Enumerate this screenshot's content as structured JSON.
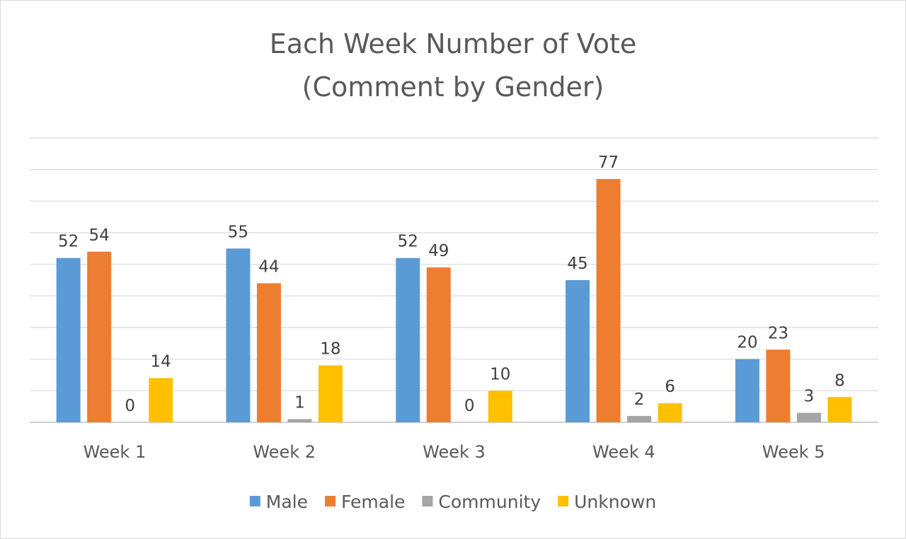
{
  "chart_data": {
    "type": "bar",
    "title_lines": [
      "Each Week Number of Vote",
      "(Comment by Gender)"
    ],
    "categories": [
      "Week 1",
      "Week 2",
      "Week 3",
      "Week 4",
      "Week 5"
    ],
    "series": [
      {
        "name": "Male",
        "color": "#5b9bd5",
        "values": [
          52,
          55,
          52,
          45,
          20
        ]
      },
      {
        "name": "Female",
        "color": "#ed7d31",
        "values": [
          54,
          44,
          49,
          77,
          23
        ]
      },
      {
        "name": "Community",
        "color": "#a5a5a5",
        "values": [
          0,
          1,
          0,
          2,
          3
        ]
      },
      {
        "name": "Unknown",
        "color": "#ffc000",
        "values": [
          14,
          18,
          10,
          6,
          8
        ]
      }
    ],
    "xlabel": "",
    "ylabel": "",
    "ylim": [
      0,
      90
    ],
    "y_gridline_step": 10,
    "grid": true,
    "legend": "bottom",
    "data_labels": true
  }
}
